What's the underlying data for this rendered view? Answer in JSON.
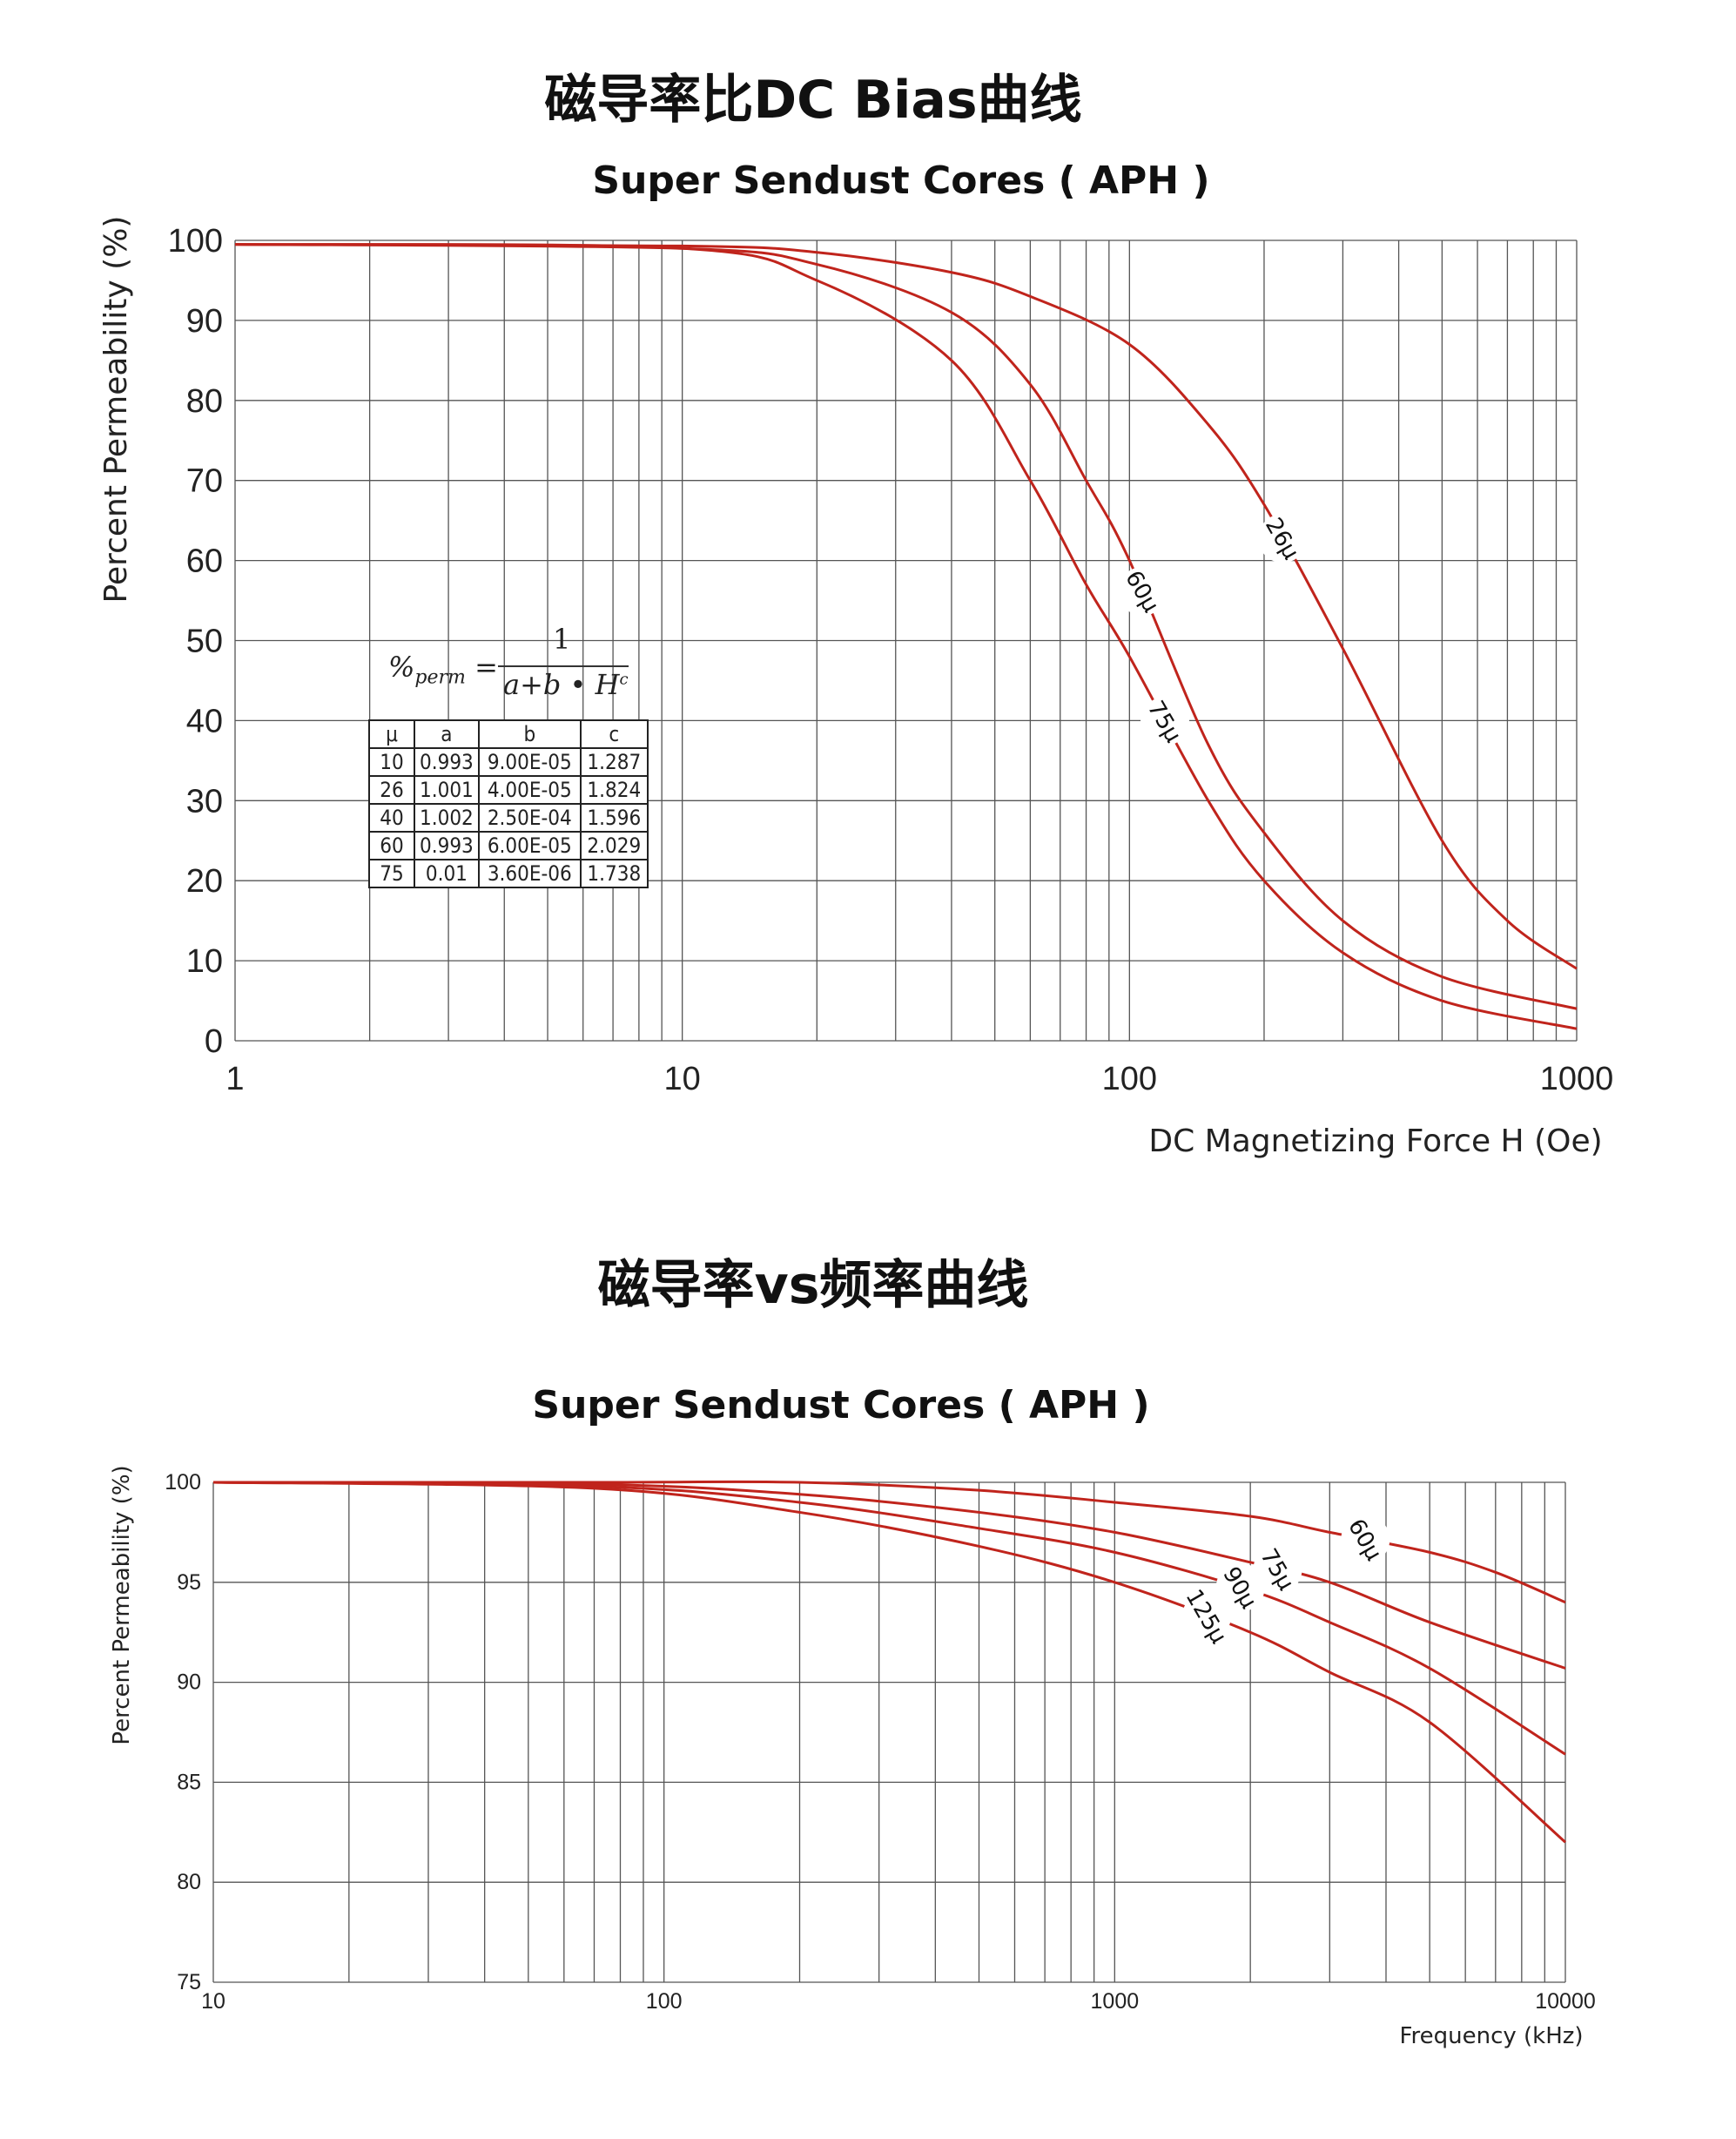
{
  "page": {
    "title1": "磁导率比DC Bias曲线",
    "title2": "磁导率vs频率曲线"
  },
  "colors": {
    "curve": "#c0241c",
    "grid": "#555555",
    "text": "#222222"
  },
  "formula": {
    "lhs": "%",
    "lhs_sub": "perm",
    "equals": "=",
    "numerator": "1",
    "denominator": "a+b • H",
    "exponent": "c"
  },
  "coef_table": {
    "headers": [
      "μ",
      "a",
      "b",
      "c"
    ],
    "rows": [
      [
        "10",
        "0.993",
        "9.00E-05",
        "1.287"
      ],
      [
        "26",
        "1.001",
        "4.00E-05",
        "1.824"
      ],
      [
        "40",
        "1.002",
        "2.50E-04",
        "1.596"
      ],
      [
        "60",
        "0.993",
        "6.00E-05",
        "2.029"
      ],
      [
        "75",
        "0.01",
        "3.60E-06",
        "1.738"
      ]
    ]
  },
  "chart_data": [
    {
      "type": "line",
      "title": "Super Sendust Cores ( APH )",
      "xlabel": "DC Magnetizing Force H (Oe)",
      "ylabel": "Percent Permeability (%)",
      "xscale": "log",
      "xlim": [
        1,
        1000
      ],
      "ylim": [
        0,
        100
      ],
      "xticks": [
        "1",
        "10",
        "100",
        "1000"
      ],
      "yticks": [
        "0",
        "10",
        "20",
        "30",
        "40",
        "50",
        "60",
        "70",
        "80",
        "90",
        "100"
      ],
      "grid": true,
      "series": [
        {
          "name": "26μ",
          "x": [
            1,
            10,
            20,
            40,
            60,
            100,
            150,
            200,
            300,
            500,
            700,
            1000
          ],
          "y": [
            99.5,
            99.3,
            98.5,
            96,
            93,
            87,
            77,
            67,
            49,
            25,
            15,
            9
          ],
          "label_at": 220
        },
        {
          "name": "60μ",
          "x": [
            1,
            10,
            20,
            40,
            60,
            80,
            100,
            150,
            200,
            300,
            500,
            1000
          ],
          "y": [
            99.5,
            99,
            97,
            91,
            82,
            70,
            60,
            37,
            26,
            15,
            8,
            4
          ],
          "label_at": 107
        },
        {
          "name": "75μ",
          "x": [
            1,
            10,
            20,
            40,
            60,
            80,
            100,
            150,
            200,
            300,
            500,
            1000
          ],
          "y": [
            99.5,
            99,
            95,
            85,
            70,
            57,
            48,
            30,
            20,
            11,
            5,
            1.5
          ],
          "label_at": 120
        }
      ]
    },
    {
      "type": "line",
      "title": "Super Sendust Cores ( APH )",
      "xlabel": "Frequency (kHz)",
      "ylabel": "Percent Permeability (%)",
      "xscale": "log",
      "xlim": [
        10,
        10000
      ],
      "ylim": [
        75,
        100
      ],
      "xticks": [
        "10",
        "100",
        "1000",
        "10000"
      ],
      "yticks": [
        "75",
        "80",
        "85",
        "90",
        "95",
        "100"
      ],
      "grid": true,
      "series": [
        {
          "name": "60μ",
          "x": [
            10,
            70,
            200,
            500,
            1000,
            2000,
            3000,
            5000,
            7000,
            10000
          ],
          "y": [
            100,
            100,
            100,
            99.6,
            99,
            98.3,
            97.5,
            96.5,
            95.5,
            94
          ],
          "label_at": 3600
        },
        {
          "name": "75μ",
          "x": [
            10,
            70,
            200,
            500,
            1000,
            2000,
            3000,
            5000,
            10000
          ],
          "y": [
            100,
            99.9,
            99.4,
            98.5,
            97.5,
            96,
            95,
            93,
            90.7
          ],
          "label_at": 2300
        },
        {
          "name": "90μ",
          "x": [
            10,
            70,
            200,
            500,
            1000,
            2000,
            3000,
            5000,
            10000
          ],
          "y": [
            100,
            99.8,
            99,
            97.7,
            96.5,
            94.6,
            93,
            90.7,
            86.4
          ],
          "label_at": 1900
        },
        {
          "name": "125μ",
          "x": [
            10,
            70,
            200,
            500,
            1000,
            2000,
            3000,
            5000,
            10000
          ],
          "y": [
            100,
            99.7,
            98.5,
            96.8,
            95,
            92.5,
            90.5,
            88,
            82
          ],
          "label_at": 1600
        }
      ]
    }
  ]
}
